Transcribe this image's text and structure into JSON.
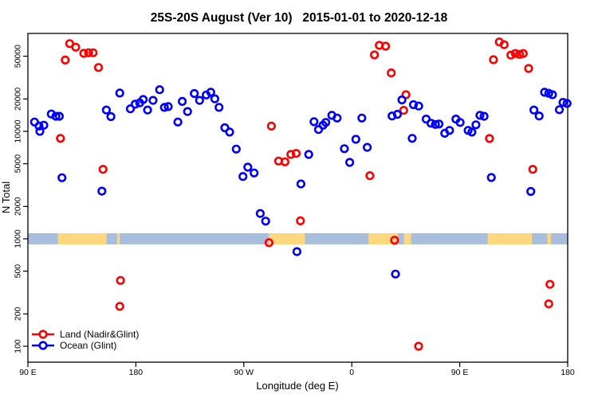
{
  "chart_data": {
    "type": "scatter",
    "title": "25S-20S August (Ver 10)   2015-01-01 to 2020-12-18",
    "xlabel": "Longitude (deg E)",
    "ylabel": "N Total",
    "x_axis": {
      "unit": "degrees eastward from 90E; axis wraps 90E → 180 → 90W → 0 → 90E → 180",
      "min": 0,
      "max": 450,
      "ticks": [
        {
          "pos": 0,
          "label": "90 E"
        },
        {
          "pos": 90,
          "label": "180"
        },
        {
          "pos": 180,
          "label": "90 W"
        },
        {
          "pos": 270,
          "label": "0"
        },
        {
          "pos": 360,
          "label": "90 E"
        },
        {
          "pos": 450,
          "label": "180"
        }
      ]
    },
    "y_axis": {
      "scale": "log10",
      "min": 70,
      "max": 82000,
      "tick_labels": [
        100,
        200,
        500,
        1000,
        2000,
        5000,
        10000,
        20000,
        50000
      ]
    },
    "grid": false,
    "legend_position": "bottom-left",
    "series": [
      {
        "name": "Land (Nadir&Glint)",
        "color": "#ff0000",
        "marker": "open-circle",
        "points": [
          [
            34.8,
            65500
          ],
          [
            39.9,
            60700
          ],
          [
            31.1,
            46100
          ],
          [
            46.6,
            53200
          ],
          [
            50.6,
            53800
          ],
          [
            54.4,
            53800
          ],
          [
            58.8,
            39300
          ],
          [
            27.1,
            8600
          ],
          [
            62.6,
            4430
          ],
          [
            76.6,
            235
          ],
          [
            77.2,
            410
          ],
          [
            201,
            920
          ],
          [
            203,
            11200
          ],
          [
            209,
            5290
          ],
          [
            214.3,
            5200
          ],
          [
            219.2,
            6100
          ],
          [
            223.7,
            6240
          ],
          [
            227.2,
            1470
          ],
          [
            285.1,
            3870
          ],
          [
            288.9,
            51400
          ],
          [
            292.9,
            63100
          ],
          [
            298.2,
            62000
          ],
          [
            302.9,
            35000
          ],
          [
            305.7,
            970
          ],
          [
            313.3,
            15700
          ],
          [
            315.1,
            21900
          ],
          [
            325.7,
            100
          ],
          [
            384.8,
            8580
          ],
          [
            388.1,
            46400
          ],
          [
            393,
            67900
          ],
          [
            397,
            64100
          ],
          [
            402.6,
            51200
          ],
          [
            406.3,
            53000
          ],
          [
            409.9,
            52000
          ],
          [
            413,
            53000
          ],
          [
            417.4,
            38500
          ],
          [
            420.9,
            4430
          ],
          [
            434.2,
            248
          ],
          [
            435.2,
            377
          ]
        ]
      },
      {
        "name": "Ocean (Glint)",
        "color": "#0000ff",
        "marker": "open-circle",
        "points": [
          [
            5.5,
            12200
          ],
          [
            9.3,
            11200
          ],
          [
            13.3,
            11400
          ],
          [
            10,
            10000
          ],
          [
            19.5,
            14500
          ],
          [
            23.3,
            13800
          ],
          [
            26.2,
            13800
          ],
          [
            28.4,
            3700
          ],
          [
            61.7,
            2780
          ],
          [
            65.4,
            15800
          ],
          [
            69.2,
            13700
          ],
          [
            76.6,
            22700
          ],
          [
            85.4,
            16200
          ],
          [
            89.4,
            17900
          ],
          [
            93.2,
            18400
          ],
          [
            96.1,
            19800
          ],
          [
            99.8,
            15800
          ],
          [
            104.3,
            19400
          ],
          [
            109.8,
            24400
          ],
          [
            113.8,
            16700
          ],
          [
            117,
            17000
          ],
          [
            125,
            12200
          ],
          [
            128.7,
            19000
          ],
          [
            133.1,
            15300
          ],
          [
            138.7,
            22500
          ],
          [
            143.1,
            19400
          ],
          [
            148.7,
            21800
          ],
          [
            152.4,
            23100
          ],
          [
            155.8,
            20100
          ],
          [
            159.3,
            16700
          ],
          [
            164.2,
            10800
          ],
          [
            168.2,
            9840
          ],
          [
            173.7,
            6840
          ],
          [
            179.3,
            3800
          ],
          [
            183.3,
            4640
          ],
          [
            188.6,
            4100
          ],
          [
            193.7,
            1720
          ],
          [
            198.2,
            1460
          ],
          [
            224.3,
            760
          ],
          [
            227.6,
            3240
          ],
          [
            234.1,
            6100
          ],
          [
            238.5,
            12300
          ],
          [
            242.3,
            10400
          ],
          [
            246.1,
            11400
          ],
          [
            248.3,
            12100
          ],
          [
            253.4,
            14100
          ],
          [
            257.8,
            13300
          ],
          [
            263.8,
            6900
          ],
          [
            268.3,
            5140
          ],
          [
            273.4,
            8430
          ],
          [
            278.4,
            13300
          ],
          [
            282.9,
            7100
          ],
          [
            303.6,
            13900
          ],
          [
            308,
            14400
          ],
          [
            311.8,
            19600
          ],
          [
            321.4,
            17700
          ],
          [
            325.8,
            17200
          ],
          [
            320.4,
            8600
          ],
          [
            306.4,
            470
          ],
          [
            332,
            13000
          ],
          [
            336,
            11900
          ],
          [
            339.7,
            11600
          ],
          [
            342.7,
            11700
          ],
          [
            347.5,
            9600
          ],
          [
            351.5,
            10200
          ],
          [
            356.8,
            13000
          ],
          [
            360.3,
            12100
          ],
          [
            367,
            10200
          ],
          [
            370.1,
            9850
          ],
          [
            373.5,
            11500
          ],
          [
            376.8,
            14100
          ],
          [
            380.3,
            13800
          ],
          [
            386.3,
            3720
          ],
          [
            419.2,
            2760
          ],
          [
            421.8,
            15800
          ],
          [
            426.2,
            13900
          ],
          [
            430.7,
            23100
          ],
          [
            434.2,
            22600
          ],
          [
            437.3,
            21900
          ],
          [
            443,
            15900
          ],
          [
            446.1,
            18600
          ],
          [
            449.5,
            18200
          ]
        ]
      }
    ],
    "surface_strip": {
      "description": "horizontal land/ocean map strip centered at N = 1000",
      "center_value": 1000,
      "ocean_color": "#a8bedc",
      "land_color": "#fcd77e",
      "land_segments": [
        [
          25,
          65.5
        ],
        [
          74.3,
          76.6
        ],
        [
          200.8,
          231
        ],
        [
          284,
          308.5
        ],
        [
          313.5,
          319.5
        ],
        [
          383.3,
          420.2
        ],
        [
          433,
          436
        ]
      ]
    }
  }
}
